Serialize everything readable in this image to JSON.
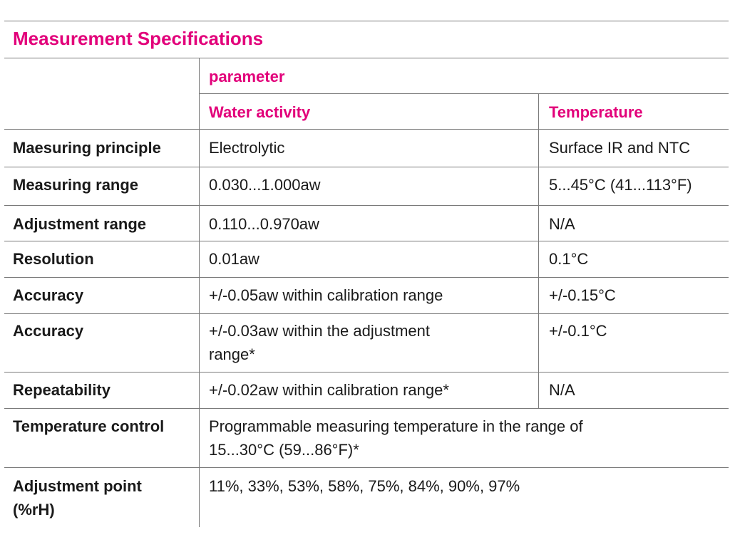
{
  "title": "Measurement Specifications",
  "header": {
    "group": "parameter",
    "col1": "Water activity",
    "col2": "Temperature"
  },
  "rows": [
    {
      "label": "Maesuring principle",
      "wa": "Electrolytic",
      "temp": "Surface IR and NTC"
    },
    {
      "label": "Measuring range",
      "wa": "0.030...1.000aw",
      "temp": "5...45°C (41...113°F)"
    },
    {
      "label": "Adjustment range",
      "wa": "0.110...0.970aw",
      "temp": "N/A"
    },
    {
      "label": "Resolution",
      "wa": "0.01aw",
      "temp": "0.1°C"
    },
    {
      "label": "Accuracy",
      "wa": "+/-0.05aw within calibration range",
      "temp": "+/-0.15°C"
    },
    {
      "label": "Accuracy",
      "wa_line1": "+/-0.03aw within the adjustment",
      "wa_line2": "range*",
      "temp": "+/-0.1°C"
    },
    {
      "label": "Repeatability",
      "wa": "+/-0.02aw within calibration range*",
      "temp": "N/A"
    },
    {
      "label": "Temperature control",
      "wa_line1": "Programmable measuring temperature in the range of",
      "wa_line2": "15...30°C (59...86°F)*"
    },
    {
      "label_line1": "Adjustment point",
      "label_line2": "(%rH)",
      "wa": "11%, 33%, 53%, 58%, 75%, 84%, 90%, 97%"
    }
  ]
}
